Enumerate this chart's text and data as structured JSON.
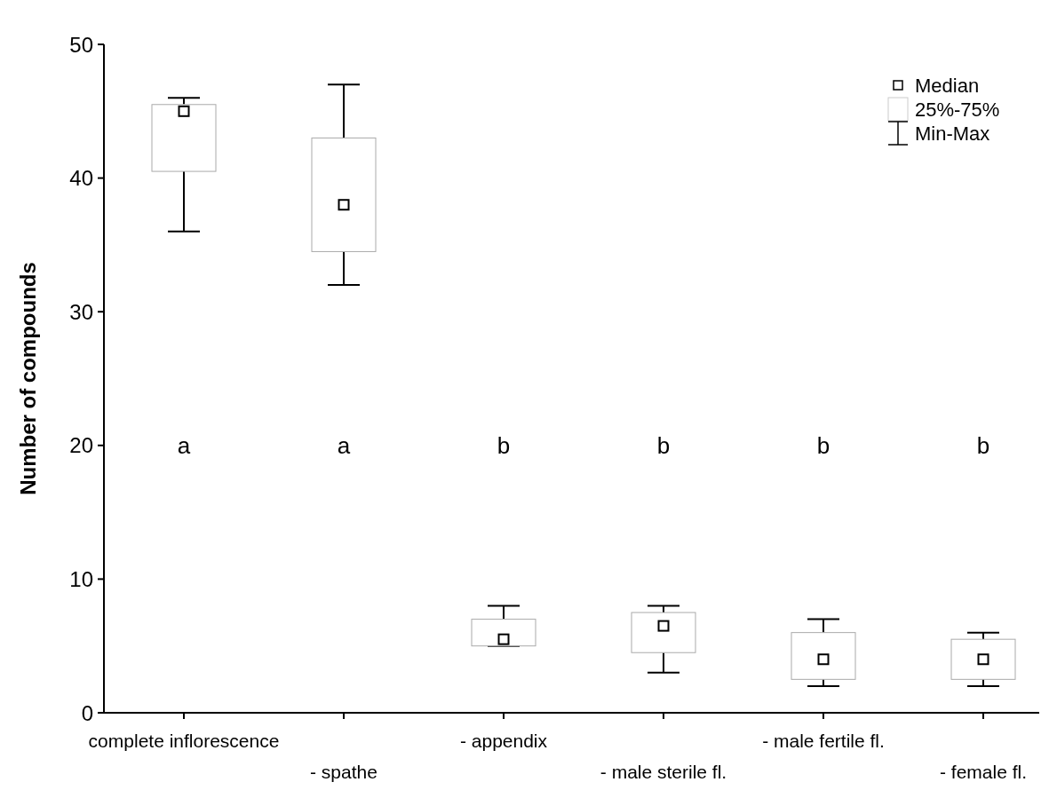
{
  "chart_data": {
    "type": "box",
    "ylabel": "Number of compounds",
    "categories": [
      "complete inflorescence",
      "- spathe",
      "- appendix",
      "- male sterile fl.",
      "- male fertile fl.",
      "- female fl."
    ],
    "boxes": [
      {
        "low": 36,
        "q1": 40.5,
        "median": 45,
        "q3": 45.5,
        "high": 46
      },
      {
        "low": 32,
        "q1": 34.5,
        "median": 38,
        "q3": 43,
        "high": 47
      },
      {
        "low": 5,
        "q1": 5,
        "median": 5.5,
        "q3": 7,
        "high": 8
      },
      {
        "low": 3,
        "q1": 4.5,
        "median": 6.5,
        "q3": 7.5,
        "high": 8
      },
      {
        "low": 2,
        "q1": 2.5,
        "median": 4,
        "q3": 6,
        "high": 7
      },
      {
        "low": 2,
        "q1": 2.5,
        "median": 4,
        "q3": 5.5,
        "high": 6
      }
    ],
    "ylim": [
      0,
      50
    ],
    "yticks": [
      0,
      10,
      20,
      30,
      40,
      50
    ],
    "grid": false,
    "annotations": [
      "a",
      "a",
      "b",
      "b",
      "b",
      "b",
      "Median",
      "25%-75%",
      "Min-Max"
    ]
  }
}
